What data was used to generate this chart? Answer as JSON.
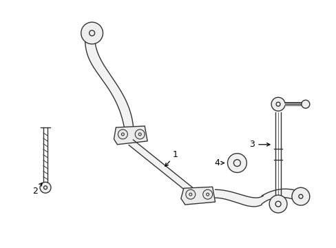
{
  "background_color": "#ffffff",
  "line_color": "#333333",
  "lw": 1.0,
  "label_color": "#000000",
  "label_fontsize": 9
}
